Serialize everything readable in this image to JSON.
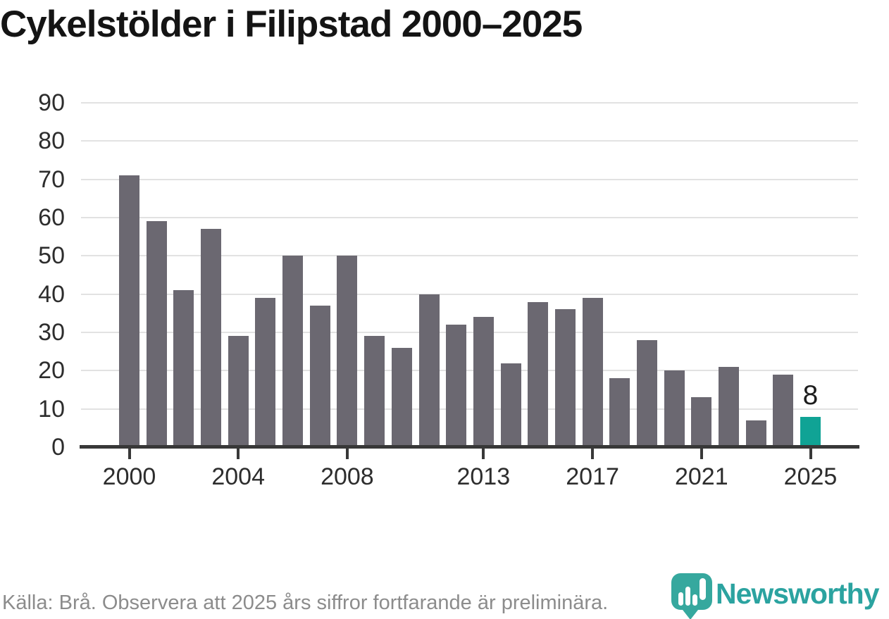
{
  "title": "Cykelstölder i Filipstad 2000–2025",
  "chart_data": {
    "type": "bar",
    "title": "Cykelstölder i Filipstad 2000–2025",
    "categories": [
      2000,
      2001,
      2002,
      2003,
      2004,
      2005,
      2006,
      2007,
      2008,
      2009,
      2010,
      2011,
      2012,
      2013,
      2014,
      2015,
      2016,
      2017,
      2018,
      2019,
      2020,
      2021,
      2022,
      2023,
      2024,
      2025
    ],
    "values": [
      71,
      59,
      41,
      57,
      29,
      39,
      50,
      37,
      50,
      29,
      26,
      40,
      32,
      34,
      22,
      38,
      36,
      39,
      18,
      28,
      20,
      13,
      21,
      7,
      19,
      8
    ],
    "xlabel": "",
    "ylabel": "",
    "ylim": [
      0,
      90
    ],
    "ytick_interval": 10,
    "xticks": [
      2000,
      2004,
      2008,
      2013,
      2017,
      2021,
      2025
    ],
    "grid": true,
    "legend": "none",
    "bar_color": "#6b6871",
    "highlight": {
      "category": 2025,
      "color": "#10a395",
      "label": "8"
    },
    "gridline_color": "#e2e2e2",
    "axis_color": "#383838"
  },
  "footer": {
    "source_note": "Källa: Brå. Observera att 2025 års siffror fortfarande är preliminära."
  },
  "branding": {
    "name": "Newsworthy",
    "icon": "newsworthy-bubble-barchart-icon",
    "icon_color": "#36a89e",
    "text_color": "#2ba3a0"
  }
}
